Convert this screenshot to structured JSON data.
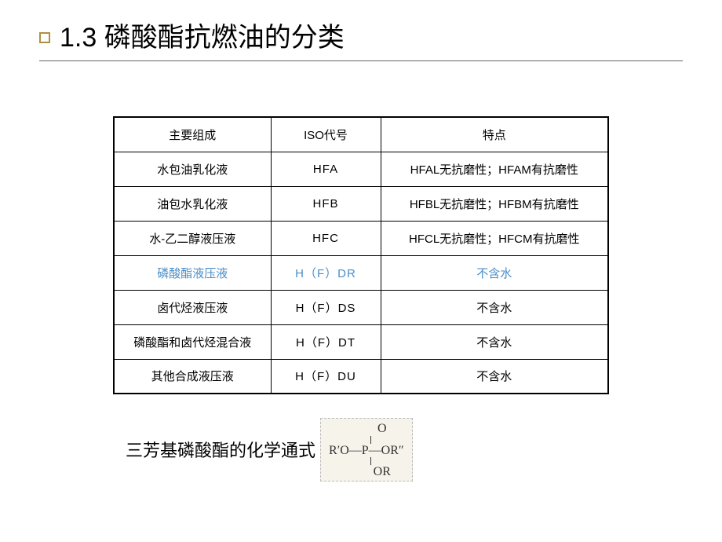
{
  "title": "1.3 磷酸酯抗燃油的分类",
  "table": {
    "headers": [
      "主要组成",
      "ISO代号",
      "特点"
    ],
    "rows": [
      {
        "c0": "水包油乳化液",
        "c1": "HFA",
        "c2": "HFAL无抗磨性；HFAM有抗磨性",
        "highlight": false
      },
      {
        "c0": "油包水乳化液",
        "c1": "HFB",
        "c2": "HFBL无抗磨性；HFBM有抗磨性",
        "highlight": false
      },
      {
        "c0": "水-乙二醇液压液",
        "c1": "HFC",
        "c2": "HFCL无抗磨性；HFCM有抗磨性",
        "highlight": false
      },
      {
        "c0": "磷酸酯液压液",
        "c1": "H（F）DR",
        "c2": "不含水",
        "highlight": true
      },
      {
        "c0": "卤代烃液压液",
        "c1": "H（F）DS",
        "c2": "不含水",
        "highlight": false
      },
      {
        "c0": "磷酸酯和卤代烃混合液",
        "c1": "H（F）DT",
        "c2": "不含水",
        "highlight": false
      },
      {
        "c0": "其他合成液压液",
        "c1": "H（F）DU",
        "c2": "不含水",
        "highlight": false
      }
    ]
  },
  "footer_label": "三芳基磷酸酯的化学通式",
  "formula": {
    "top": "O",
    "middle": "R′O—P—OR″",
    "bottom": "OR"
  },
  "colors": {
    "highlight": "#4a8ec8",
    "border": "#000000",
    "title_underline": "#666666",
    "square_border": "#b09040",
    "background": "#ffffff",
    "formula_bg": "#f6f3ea"
  }
}
